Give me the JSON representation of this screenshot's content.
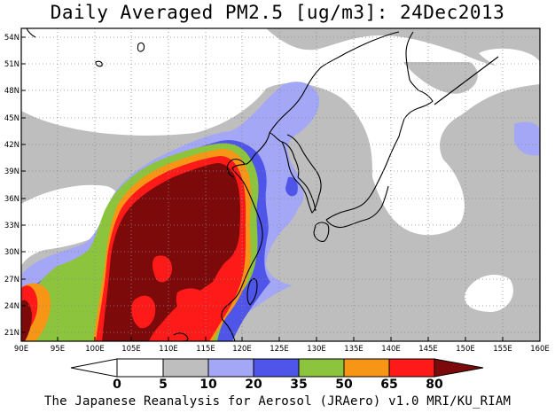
{
  "title": "Daily Averaged PM2.5 [ug/m3]: 24Dec2013",
  "footer": "The Japanese Reanalysis for Aerosol (JRAero) v1.0 MRI/KU_RIAM",
  "map": {
    "projection": "lat-lon",
    "lon_range": [
      90,
      160
    ],
    "lat_range": [
      20,
      55
    ],
    "lon_ticks": [
      "90E",
      "95E",
      "100E",
      "105E",
      "110E",
      "115E",
      "120E",
      "125E",
      "130E",
      "135E",
      "140E",
      "145E",
      "150E",
      "155E",
      "160E"
    ],
    "lat_ticks": [
      "21N",
      "24N",
      "27N",
      "30N",
      "33N",
      "36N",
      "39N",
      "42N",
      "45N",
      "48N",
      "51N",
      "54N"
    ],
    "grid": "dotted",
    "variable": "PM2.5",
    "units": "ug/m3",
    "date": "24Dec2013"
  },
  "colorbar": {
    "labels": [
      "0",
      "5",
      "10",
      "20",
      "35",
      "50",
      "65",
      "80"
    ],
    "colors": [
      "#ffffff",
      "#bebebe",
      "#a3a7f5",
      "#4e55e8",
      "#8cc43d",
      "#f79517",
      "#ff1a1a",
      "#7d0a0a"
    ],
    "lower_arrow_color": "#ffffff",
    "upper_arrow_color": "#7d0a0a"
  }
}
